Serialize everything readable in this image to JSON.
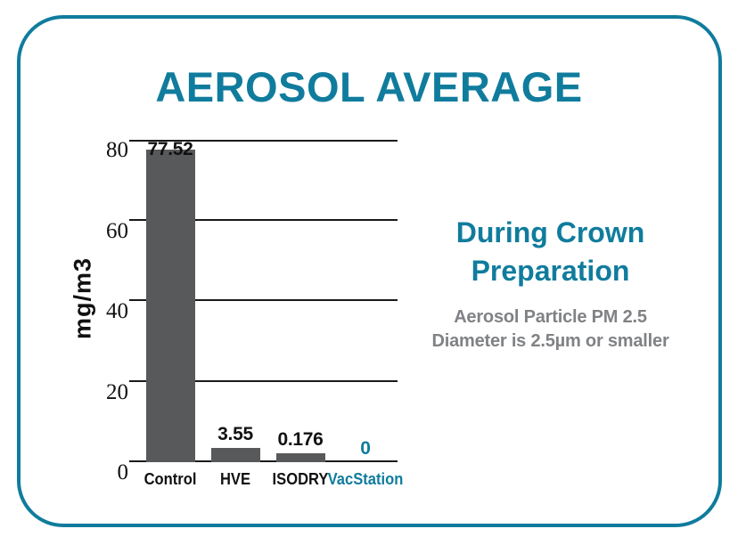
{
  "page": {
    "background": "#ffffff",
    "accent_color": "#107c9d"
  },
  "chart_data": {
    "type": "bar",
    "title": "AEROSOL AVERAGE",
    "categories": [
      "Control",
      "HVE",
      "ISODRY",
      "VacStation"
    ],
    "values": [
      77.52,
      3.55,
      0.176,
      0
    ],
    "value_labels": [
      "77.52",
      "3.55",
      "0.176",
      "0"
    ],
    "xlabel": "",
    "ylabel": "mg/m3",
    "ylim": [
      0,
      80
    ],
    "yticks": [
      80,
      60,
      40,
      20,
      0
    ],
    "grid": true,
    "legend": false,
    "bar_color": "#58595b",
    "axis_text_color": "#111111",
    "highlight_category": "VacStation",
    "highlight_color": "#107c9d"
  },
  "annotation": {
    "heading_line1": "During Crown",
    "heading_line2": "Preparation",
    "heading_color": "#107c9d",
    "sub_line1": "Aerosol Particle PM 2.5",
    "sub_line2": "Diameter is 2.5µm or smaller",
    "sub_color": "#808285"
  }
}
